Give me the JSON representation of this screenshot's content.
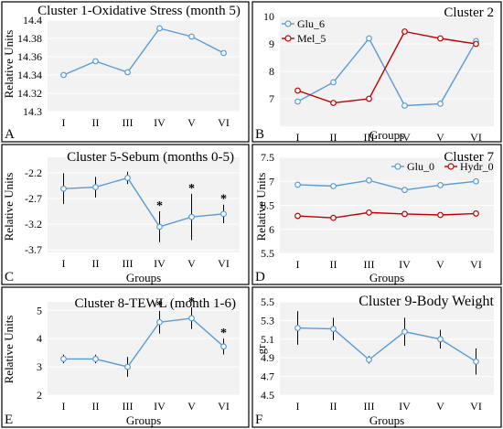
{
  "chart_data": [
    {
      "type": "line",
      "panel_letter": "A",
      "title": "Cluster 1-Oxidative Stress (month 5)",
      "xlabel": "",
      "ylabel": "Relative Units",
      "categories": [
        "I",
        "II",
        "III",
        "IV",
        "V",
        "VI"
      ],
      "yticks": [
        "14.4",
        "14.38",
        "14.36",
        "14.34",
        "14.32",
        "14.3"
      ],
      "ylim": [
        14.3,
        14.4
      ],
      "grid": true,
      "series": [
        {
          "values": [
            14.34,
            14.355,
            14.343,
            14.391,
            14.382,
            14.364
          ],
          "color": "#5b9bd5"
        }
      ]
    },
    {
      "type": "line",
      "panel_letter": "B",
      "title": "Cluster 2",
      "xlabel": "Groups",
      "ylabel": "",
      "categories": [
        "I",
        "II",
        "III",
        "IV",
        "V",
        "VI"
      ],
      "yticks": [
        "10",
        "9",
        "8",
        "7"
      ],
      "ylim": [
        6,
        10
      ],
      "grid": true,
      "legend_position": "top-left",
      "series": [
        {
          "name": "Glu_6",
          "values": [
            6.9,
            7.6,
            9.2,
            6.75,
            6.82,
            9.1
          ],
          "color": "#5b9bd5"
        },
        {
          "name": "Mel_5",
          "values": [
            7.3,
            6.85,
            7.0,
            9.45,
            9.2,
            9.0
          ],
          "color": "#c00000"
        }
      ]
    },
    {
      "type": "line",
      "panel_letter": "C",
      "title": "Cluster 5-Sebum (months 0-5)",
      "xlabel": "Groups",
      "ylabel": "Relative Units",
      "categories": [
        "I",
        "II",
        "III",
        "IV",
        "V",
        "VI"
      ],
      "yticks": [
        "-2.2",
        "-2.7",
        "-3.2",
        "-3.7"
      ],
      "ylim": [
        -3.75,
        -1.9
      ],
      "grid": true,
      "series": [
        {
          "values": [
            -2.51,
            -2.48,
            -2.3,
            -3.25,
            -3.06,
            -3.0
          ],
          "errors": [
            0.3,
            0.2,
            0.12,
            0.3,
            0.45,
            0.18
          ],
          "annotations": [
            "",
            "",
            "",
            "*",
            "*",
            "*"
          ],
          "color": "#5b9bd5"
        }
      ]
    },
    {
      "type": "line",
      "panel_letter": "D",
      "title": "Cluster 7",
      "xlabel": "Groups",
      "ylabel": "Relative Units",
      "categories": [
        "I",
        "II",
        "III",
        "IV",
        "V",
        "VI"
      ],
      "yticks": [
        "7.5",
        "7",
        "6.5",
        "6",
        "5.5"
      ],
      "ylim": [
        5.5,
        7.5
      ],
      "grid": true,
      "legend_position": "top-right",
      "series": [
        {
          "name": "Glu_0",
          "values": [
            6.93,
            6.9,
            7.02,
            6.82,
            6.92,
            7.0
          ],
          "color": "#5b9bd5"
        },
        {
          "name": "Hydr_0",
          "values": [
            6.28,
            6.24,
            6.35,
            6.32,
            6.3,
            6.33
          ],
          "color": "#c00000"
        }
      ]
    },
    {
      "type": "line",
      "panel_letter": "E",
      "title": "Cluster 8-TEWL (month 1-6)",
      "xlabel": "Groups",
      "ylabel": "Relative Units",
      "categories": [
        "I",
        "II",
        "III",
        "IV",
        "V",
        "VI"
      ],
      "yticks": [
        "5",
        "4",
        "3",
        "2"
      ],
      "ylim": [
        2,
        5.3
      ],
      "grid": true,
      "series": [
        {
          "values": [
            3.28,
            3.28,
            3.0,
            4.58,
            4.72,
            3.72
          ],
          "errors": [
            0.15,
            0.15,
            0.35,
            0.4,
            0.38,
            0.28
          ],
          "annotations": [
            "",
            "",
            "",
            "*",
            "*",
            "*"
          ],
          "color": "#5b9bd5"
        }
      ]
    },
    {
      "type": "line",
      "panel_letter": "F",
      "title": "Cluster 9-Body Weight",
      "xlabel": "Groups",
      "ylabel": "gr",
      "categories": [
        "I",
        "II",
        "III",
        "IV",
        "V",
        "VI"
      ],
      "yticks": [
        "5.5",
        "5.3",
        "5.1",
        "4.9",
        "4.7",
        "4.5"
      ],
      "ylim": [
        4.5,
        5.5
      ],
      "grid": true,
      "series": [
        {
          "values": [
            5.22,
            5.21,
            4.88,
            5.18,
            5.1,
            4.86
          ],
          "errors": [
            0.18,
            0.12,
            0.04,
            0.15,
            0.1,
            0.14
          ],
          "color": "#5b9bd5"
        }
      ]
    }
  ]
}
